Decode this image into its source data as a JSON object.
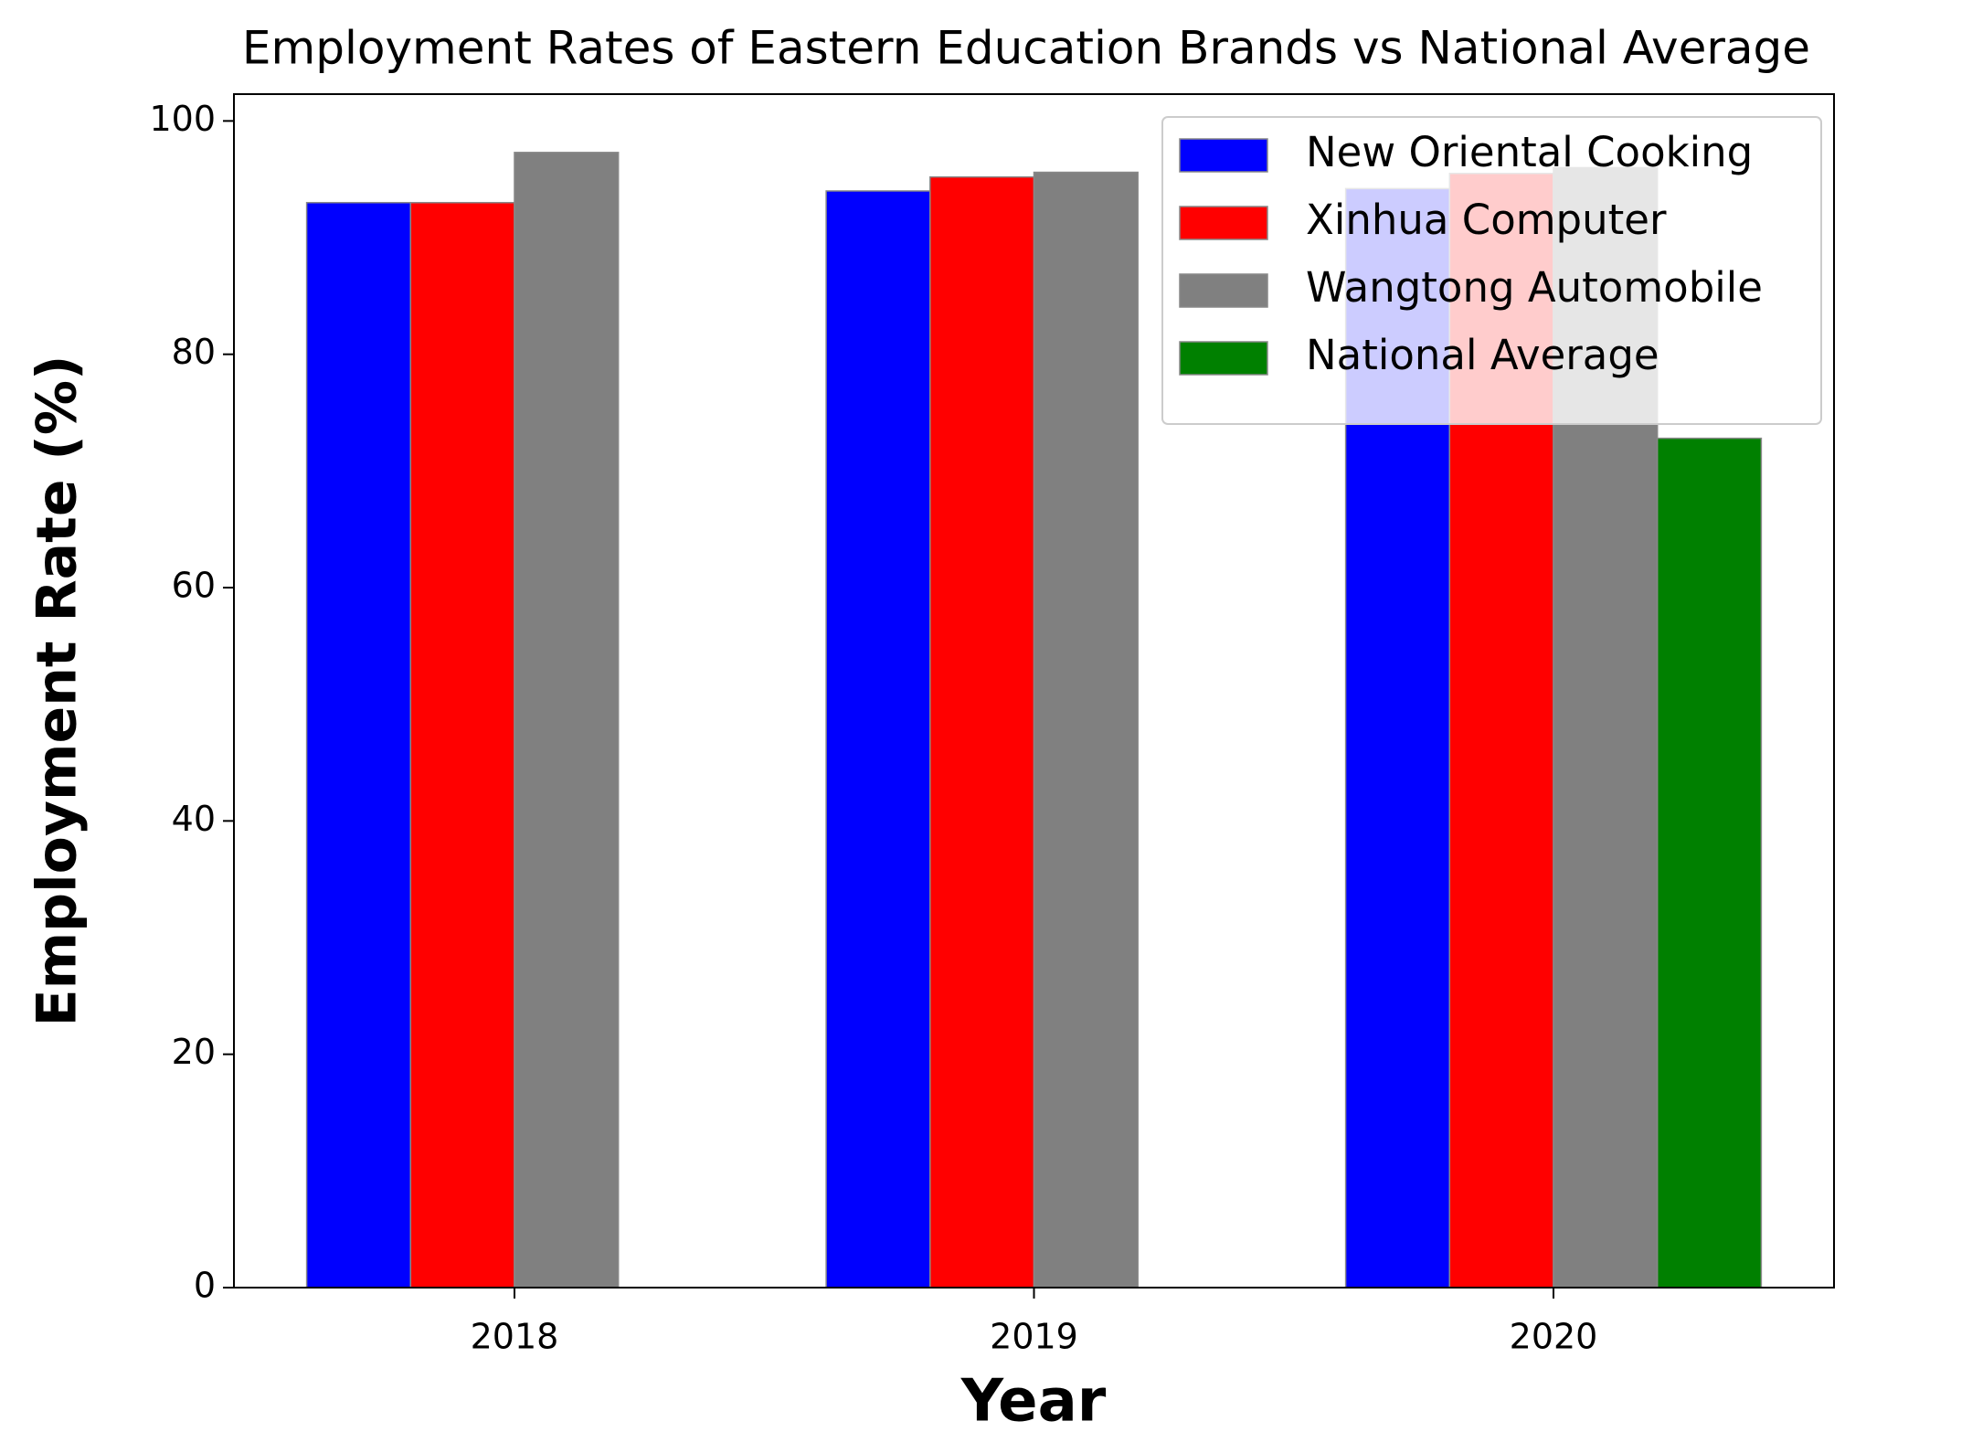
{
  "chart_data": {
    "type": "bar",
    "title": "Employment Rates of Eastern Education Brands vs National Average",
    "x_label": "Year",
    "y_label": "Employment Rate (%)",
    "categories": [
      "2018",
      "2019",
      "2020"
    ],
    "series": [
      {
        "name": "New Oriental Cooking",
        "color": "#0000ff",
        "values": [
          93,
          94,
          94.2
        ]
      },
      {
        "name": "Xinhua Computer",
        "color": "#ff0000",
        "values": [
          93,
          95.2,
          95.5
        ]
      },
      {
        "name": "Wangtong Automobile",
        "color": "#808080",
        "values": [
          97.3,
          95.6,
          96
        ]
      },
      {
        "name": "National Average",
        "color": "#008000",
        "values": [
          null,
          null,
          72.8
        ]
      }
    ],
    "ylim": [
      0,
      102.3
    ],
    "yticks": [
      0,
      20,
      40,
      60,
      80,
      100
    ],
    "grid": false,
    "legend": "upper right"
  }
}
